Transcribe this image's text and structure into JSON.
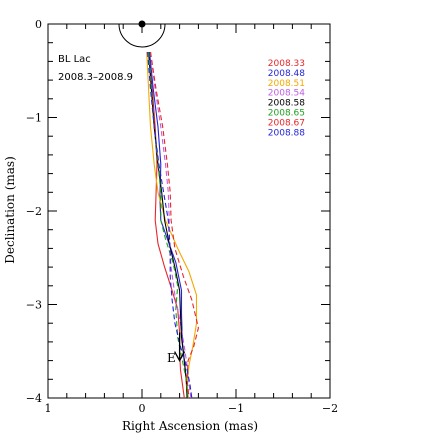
{
  "chart_data": {
    "type": "line",
    "title": "BL Lac",
    "subtitle": "2008.3–2008.9",
    "xlabel": "Right Ascension  (mas)",
    "ylabel": "Declination (mas)",
    "xlim": [
      1,
      -2
    ],
    "ylim": [
      -4,
      0
    ],
    "xticks": [
      1,
      0,
      -1,
      -2
    ],
    "xtick_labels": [
      "1",
      "0",
      "−1",
      "−2"
    ],
    "yticks": [
      0,
      -1,
      -2,
      -3,
      -4
    ],
    "ytick_labels": [
      "0",
      "−1",
      "−2",
      "−3",
      "−4"
    ],
    "annotation": "E",
    "grid": false,
    "legend_position": "top-right",
    "core": {
      "x": 0,
      "y": 0
    },
    "series": [
      {
        "name": "2008.33",
        "color": "#e8262a",
        "dashed": false,
        "x": [
          -0.07,
          -0.11,
          -0.14,
          -0.16,
          -0.15,
          -0.14,
          -0.17,
          -0.24,
          -0.32,
          -0.38,
          -0.4,
          -0.4,
          -0.41,
          -0.43,
          -0.45
        ],
        "y": [
          -0.3,
          -0.7,
          -1.1,
          -1.5,
          -1.8,
          -2.1,
          -2.35,
          -2.6,
          -2.85,
          -3.05,
          -3.3,
          -3.5,
          -3.7,
          -3.85,
          -4.0
        ]
      },
      {
        "name": "2008.48",
        "color": "#2424d8",
        "dashed": false,
        "x": [
          -0.08,
          -0.12,
          -0.17,
          -0.2,
          -0.19,
          -0.2,
          -0.27,
          -0.36,
          -0.42,
          -0.42,
          -0.43,
          -0.45,
          -0.47,
          -0.49
        ],
        "y": [
          -0.3,
          -0.7,
          -1.1,
          -1.5,
          -1.85,
          -2.1,
          -2.3,
          -2.55,
          -2.85,
          -3.1,
          -3.4,
          -3.6,
          -3.8,
          -4.0
        ]
      },
      {
        "name": "2008.51",
        "color": "#f2a900",
        "dashed": false,
        "x": [
          -0.05,
          -0.07,
          -0.09,
          -0.13,
          -0.17,
          -0.25,
          -0.38,
          -0.5,
          -0.58,
          -0.58,
          -0.54,
          -0.5,
          -0.48,
          -0.49
        ],
        "y": [
          -0.3,
          -0.7,
          -1.1,
          -1.5,
          -1.8,
          -2.1,
          -2.4,
          -2.65,
          -2.9,
          -3.2,
          -3.45,
          -3.65,
          -3.85,
          -4.0
        ]
      },
      {
        "name": "2008.54",
        "color": "#c060e0",
        "dashed": true,
        "x": [
          -0.09,
          -0.14,
          -0.2,
          -0.25,
          -0.28,
          -0.29,
          -0.29,
          -0.31,
          -0.35,
          -0.41,
          -0.45,
          -0.48,
          -0.5,
          -0.52
        ],
        "y": [
          -0.3,
          -0.7,
          -1.1,
          -1.5,
          -1.8,
          -2.1,
          -2.35,
          -2.6,
          -2.9,
          -3.2,
          -3.45,
          -3.65,
          -3.85,
          -4.0
        ]
      },
      {
        "name": "2008.58",
        "color": "#000000",
        "dashed": false,
        "x": [
          -0.07,
          -0.1,
          -0.13,
          -0.17,
          -0.21,
          -0.24,
          -0.29,
          -0.35,
          -0.4,
          -0.41,
          -0.42,
          -0.45,
          -0.47,
          -0.48
        ],
        "y": [
          -0.3,
          -0.7,
          -1.1,
          -1.5,
          -1.8,
          -2.1,
          -2.35,
          -2.6,
          -2.85,
          -3.1,
          -3.35,
          -3.6,
          -3.8,
          -4.0
        ]
      },
      {
        "name": "2008.65",
        "color": "#22a022",
        "dashed": true,
        "x": [
          -0.07,
          -0.1,
          -0.13,
          -0.17,
          -0.2,
          -0.2,
          -0.25,
          -0.33,
          -0.38,
          -0.36,
          -0.38,
          -0.43,
          -0.47,
          -0.49
        ],
        "y": [
          -0.3,
          -0.7,
          -1.1,
          -1.5,
          -1.8,
          -2.1,
          -2.3,
          -2.55,
          -2.8,
          -3.05,
          -3.35,
          -3.6,
          -3.8,
          -4.0
        ]
      },
      {
        "name": "2008.67",
        "color": "#e8262a",
        "dashed": true,
        "x": [
          -0.09,
          -0.15,
          -0.22,
          -0.27,
          -0.3,
          -0.31,
          -0.35,
          -0.44,
          -0.53,
          -0.6,
          -0.55,
          -0.49,
          -0.48,
          -0.5
        ],
        "y": [
          -0.3,
          -0.7,
          -1.1,
          -1.5,
          -1.8,
          -2.1,
          -2.4,
          -2.7,
          -2.95,
          -3.25,
          -3.45,
          -3.6,
          -3.8,
          -4.0
        ]
      },
      {
        "name": "2008.88",
        "color": "#2424d8",
        "dashed": true,
        "x": [
          -0.06,
          -0.09,
          -0.13,
          -0.18,
          -0.23,
          -0.28,
          -0.3,
          -0.3,
          -0.32,
          -0.35,
          -0.41,
          -0.47,
          -0.51,
          -0.53
        ],
        "y": [
          -0.3,
          -0.7,
          -1.1,
          -1.5,
          -1.8,
          -2.1,
          -2.4,
          -2.7,
          -2.95,
          -3.2,
          -3.45,
          -3.65,
          -3.85,
          -4.0
        ]
      }
    ]
  }
}
